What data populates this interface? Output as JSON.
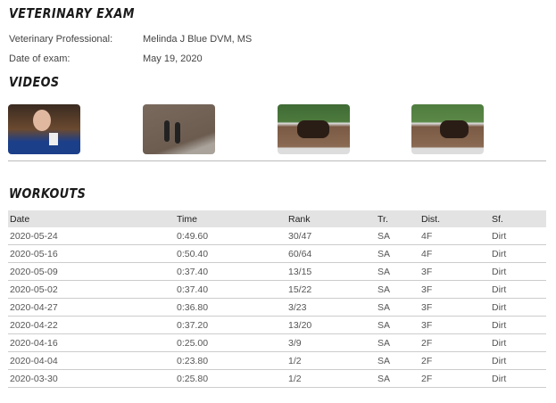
{
  "vet": {
    "title": "VETERINARY EXAM",
    "professional_label": "Veterinary Professional:",
    "professional": "Melinda J Blue DVM, MS",
    "date_label": "Date of exam:",
    "date": "May 19, 2020"
  },
  "videos": {
    "title": "VIDEOS",
    "items": [
      {
        "thumb": "interview"
      },
      {
        "thumb": "two-horses-track"
      },
      {
        "thumb": "horses-workout"
      },
      {
        "thumb": "horse-workout"
      }
    ]
  },
  "workouts": {
    "title": "WORKOUTS",
    "columns": [
      "Date",
      "Time",
      "Rank",
      "Tr.",
      "Dist.",
      "Sf."
    ],
    "rows": [
      [
        "2020-05-24",
        "0:49.60",
        "30/47",
        "SA",
        "4F",
        "Dirt"
      ],
      [
        "2020-05-16",
        "0:50.40",
        "60/64",
        "SA",
        "4F",
        "Dirt"
      ],
      [
        "2020-05-09",
        "0:37.40",
        "13/15",
        "SA",
        "3F",
        "Dirt"
      ],
      [
        "2020-05-02",
        "0:37.40",
        "15/22",
        "SA",
        "3F",
        "Dirt"
      ],
      [
        "2020-04-27",
        "0:36.80",
        "3/23",
        "SA",
        "3F",
        "Dirt"
      ],
      [
        "2020-04-22",
        "0:37.20",
        "13/20",
        "SA",
        "3F",
        "Dirt"
      ],
      [
        "2020-04-16",
        "0:25.00",
        "3/9",
        "SA",
        "2F",
        "Dirt"
      ],
      [
        "2020-04-04",
        "0:23.80",
        "1/2",
        "SA",
        "2F",
        "Dirt"
      ],
      [
        "2020-03-30",
        "0:25.80",
        "1/2",
        "SA",
        "2F",
        "Dirt"
      ]
    ]
  }
}
